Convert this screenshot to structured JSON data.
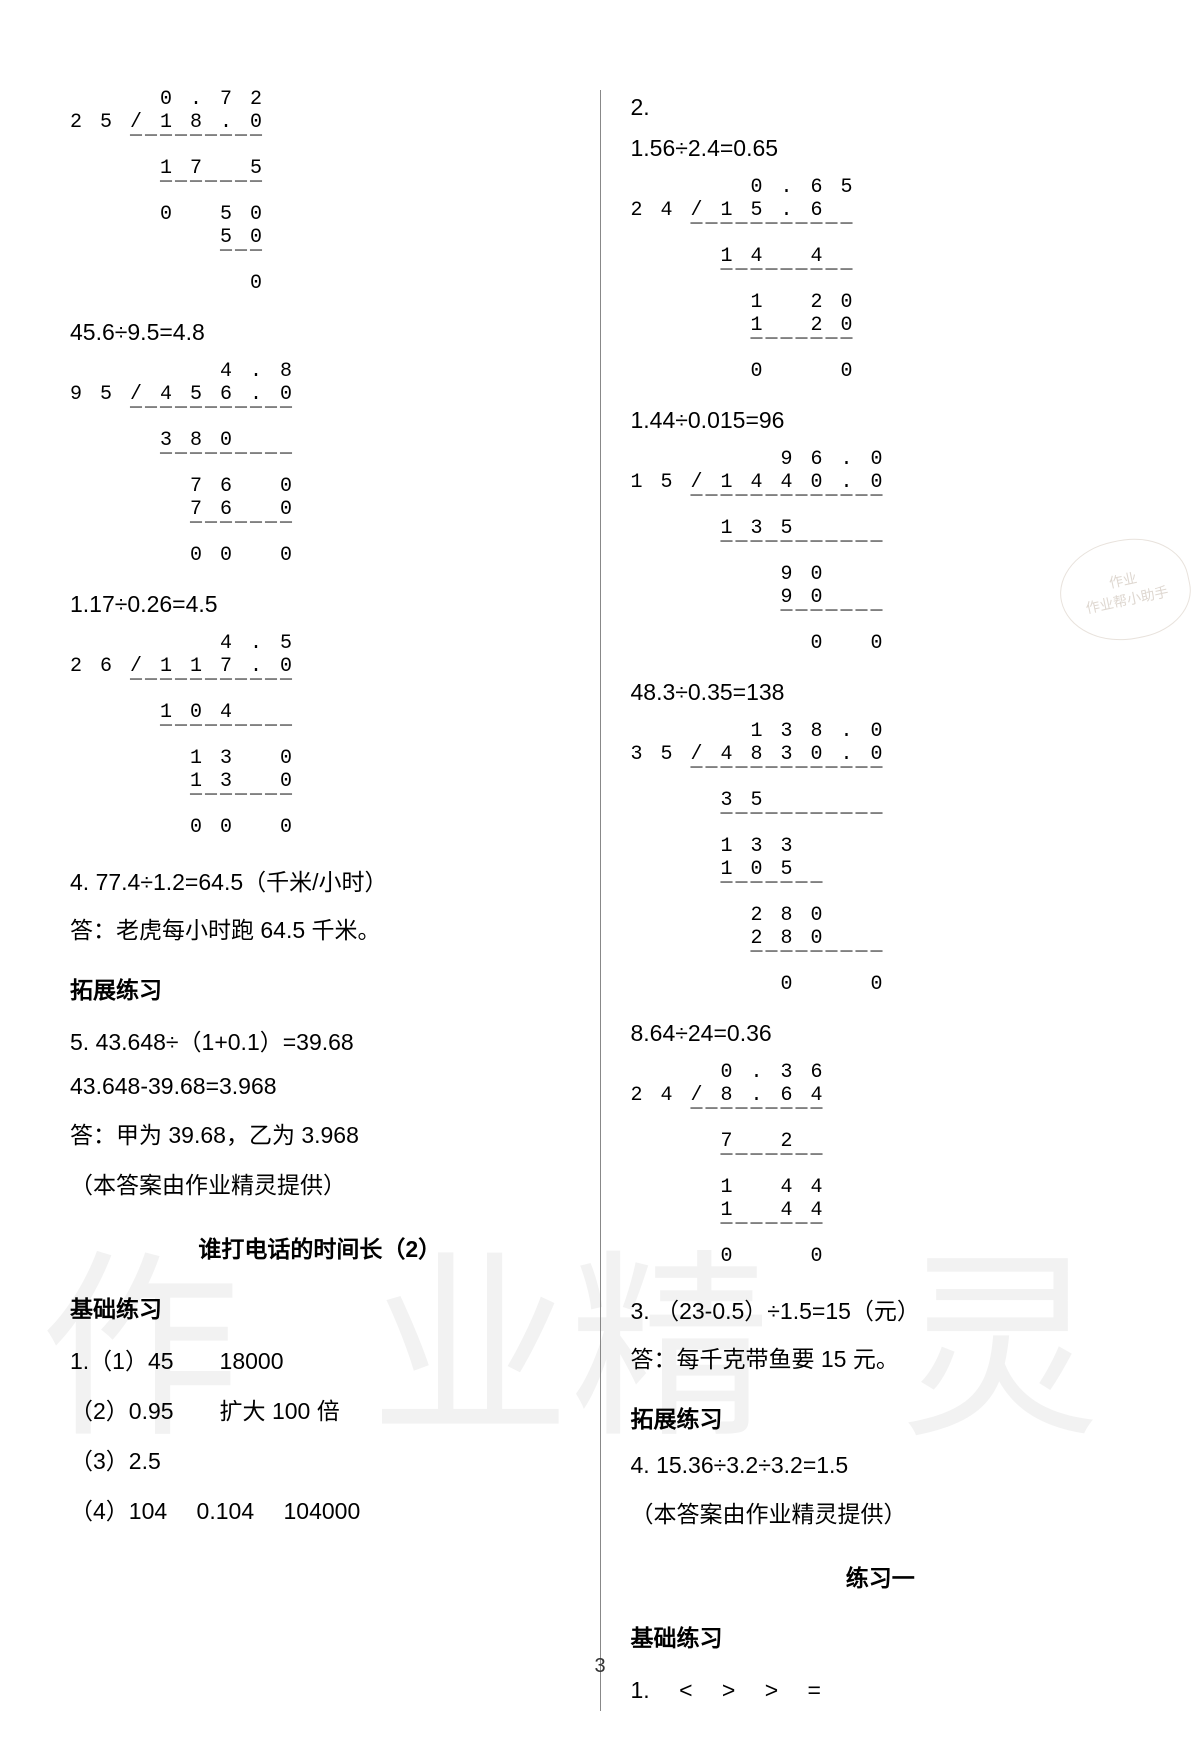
{
  "page_number": "3",
  "watermark_left": "作 业",
  "watermark_right": "精 灵",
  "stamp_line1": "作业",
  "stamp_line2": "作业帮小助手",
  "left": {
    "div1": "      0 . 7 2\n2 5 / 1 8 . 0\n    ‾‾‾‾‾‾‾‾‾\n      1 7   5\n      ‾‾‾‾‾‾‾\n      0   5 0\n          5 0\n          ‾‾‾\n            0",
    "eq1": "45.6÷9.5=4.8",
    "div2": "          4 . 8\n9 5 / 4 5 6 . 0\n    ‾‾‾‾‾‾‾‾‾‾‾\n      3 8 0\n      ‾‾‾‾‾‾‾‾‾\n        7 6   0\n        7 6   0\n        ‾‾‾‾‾‾‾\n        0 0   0",
    "eq2": "1.17÷0.26=4.5",
    "div3": "          4 . 5\n2 6 / 1 1 7 . 0\n    ‾‾‾‾‾‾‾‾‾‾‾\n      1 0 4\n      ‾‾‾‾‾‾‾‾‾\n        1 3   0\n        1 3   0\n        ‾‾‾‾‾‾‾\n        0 0   0",
    "q4": "4.   77.4÷1.2=64.5（千米/小时）",
    "a4": "答：老虎每小时跑 64.5 千米。",
    "ext_title": "拓展练习",
    "q5a": "5.   43.648÷（1+0.1）=39.68",
    "q5b": "43.648-39.68=3.968",
    "a5": "答：甲为 39.68，乙为 3.968",
    "credit": "（本答案由作业精灵提供）",
    "title2": "谁打电话的时间长（2）",
    "basic_title": "基础练习",
    "q1_1": "1.（1）45　　18000",
    "q1_2": "（2）0.95　　扩大 100 倍",
    "q1_3": "（3）2.5",
    "q1_4": "（4）104　 0.104　 104000"
  },
  "right": {
    "q2": "2.",
    "eq1": "1.56÷2.4=0.65",
    "div1": "        0 . 6 5\n2 4 / 1 5 . 6\n    ‾‾‾‾‾‾‾‾‾‾‾\n      1 4   4\n      ‾‾‾‾‾‾‾‾‾\n        1   2 0\n        1   2 0\n        ‾‾‾‾‾‾‾\n        0     0",
    "eq2": "1.44÷0.015=96",
    "div2": "          9 6 . 0\n1 5 / 1 4 4 0 . 0\n    ‾‾‾‾‾‾‾‾‾‾‾‾‾\n      1 3 5\n      ‾‾‾‾‾‾‾‾‾‾‾\n          9 0\n          9 0\n          ‾‾‾‾‾‾‾\n            0   0",
    "eq3": "48.3÷0.35=138",
    "div3": "        1 3 8 . 0\n3 5 / 4 8 3 0 . 0\n    ‾‾‾‾‾‾‾‾‾‾‾‾‾\n      3 5\n      ‾‾‾‾‾‾‾‾‾‾‾\n      1 3 3\n      1 0 5\n      ‾‾‾‾‾‾‾\n        2 8 0\n        2 8 0\n        ‾‾‾‾‾‾‾‾‾\n          0     0",
    "eq4": "8.64÷24=0.36",
    "div4": "      0 . 3 6\n2 4 / 8 . 6 4\n    ‾‾‾‾‾‾‾‾‾\n      7   2\n      ‾‾‾‾‾‾‾\n      1   4 4\n      1   4 4\n      ‾‾‾‾‾‾‾\n      0     0",
    "q3": "3.  （23-0.5）÷1.5=15（元）",
    "a3": "答：每千克带鱼要 15 元。",
    "ext_title": "拓展练习",
    "q4": "4.   15.36÷3.2÷3.2=1.5",
    "credit": "（本答案由作业精灵提供）",
    "title2": "练习一",
    "basic_title": "基础练习",
    "q1": "1.　 <　 >　 >　 ="
  }
}
